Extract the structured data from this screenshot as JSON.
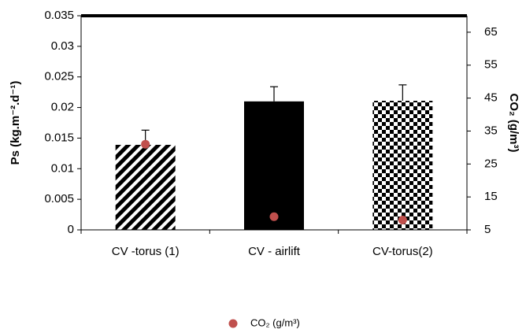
{
  "chart_data": {
    "type": "bar",
    "categories": [
      "CV -torus (1)",
      "CV - airlift",
      "CV-torus(2)"
    ],
    "values": [
      0.0139,
      0.021,
      0.0211
    ],
    "errors": [
      0.0024,
      0.0024,
      0.0026
    ],
    "patterns": [
      "diagonal",
      "solid",
      "checker"
    ],
    "color": "#000000",
    "ylabel": "Ps (kg.m⁻².d⁻¹)",
    "ylim": [
      0,
      0.035
    ],
    "yticks": [
      0,
      0.005,
      0.01,
      0.015,
      0.02,
      0.025,
      0.03,
      0.035
    ],
    "y2label": "CO₂ (g/m³)",
    "y2lim": [
      5,
      70
    ],
    "y2ticks": [
      5,
      15,
      25,
      35,
      45,
      55,
      65
    ],
    "series": [
      {
        "name": "CO₂ (g/m³)",
        "color": "#c0504d",
        "values": [
          31,
          9,
          8
        ],
        "axis": "y2"
      }
    ],
    "legend": "bottom"
  }
}
